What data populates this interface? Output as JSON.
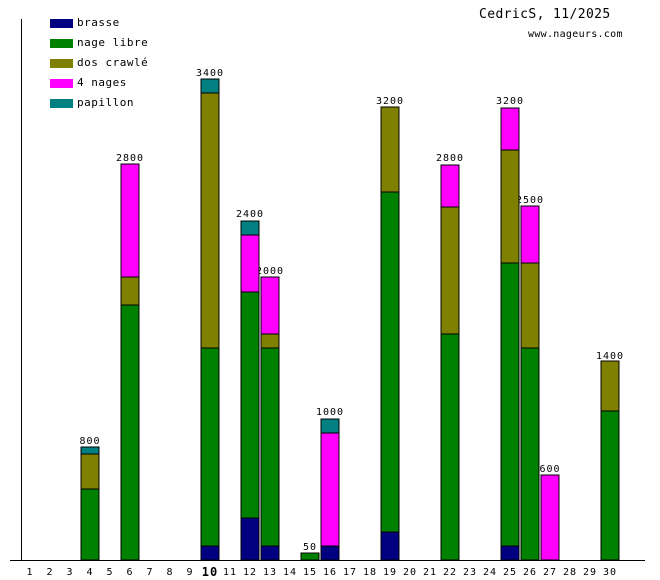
{
  "header": {
    "title": "CedricS, 11/2025",
    "url": "www.nageurs.com"
  },
  "chart_data": {
    "type": "bar",
    "stacked": true,
    "title": "CedricS, 11/2025",
    "subtitle": "www.nageurs.com",
    "unit": "meters swum per day",
    "grid": false,
    "legend_position": "top-left",
    "ylim": [
      0,
      3450
    ],
    "x_labels": [
      "1",
      "2",
      "3",
      "4",
      "5",
      "6",
      "7",
      "8",
      "9",
      "10",
      "11",
      "12",
      "13",
      "14",
      "15",
      "16",
      "17",
      "18",
      "19",
      "20",
      "21",
      "22",
      "23",
      "24",
      "25",
      "26",
      "27",
      "28",
      "29",
      "30"
    ],
    "bold_x_label": "10",
    "legend": [
      {
        "label": "brasse",
        "color": "#000080"
      },
      {
        "label": "nage libre",
        "color": "#008000"
      },
      {
        "label": "dos crawlé",
        "color": "#808000"
      },
      {
        "label": "4 nages",
        "color": "#ff00ff"
      },
      {
        "label": "papillon",
        "color": "#008080"
      }
    ],
    "bars": [
      {
        "day": "4",
        "total": 800,
        "values": [
          0,
          500,
          250,
          0,
          50
        ]
      },
      {
        "day": "6",
        "total": 2800,
        "values": [
          0,
          1800,
          200,
          800,
          0
        ]
      },
      {
        "day": "10",
        "total": 3400,
        "values": [
          100,
          1400,
          1800,
          0,
          100
        ]
      },
      {
        "day": "12",
        "total": 2400,
        "values": [
          300,
          1600,
          0,
          400,
          100
        ]
      },
      {
        "day": "13",
        "total": 2000,
        "values": [
          100,
          1400,
          100,
          400,
          0
        ]
      },
      {
        "day": "15",
        "total": 50,
        "values": [
          0,
          50,
          0,
          0,
          0
        ]
      },
      {
        "day": "16",
        "total": 1000,
        "values": [
          100,
          0,
          0,
          800,
          100
        ]
      },
      {
        "day": "19",
        "total": 3200,
        "values": [
          200,
          2400,
          600,
          0,
          0
        ]
      },
      {
        "day": "22",
        "total": 2800,
        "values": [
          0,
          1600,
          900,
          300,
          0
        ]
      },
      {
        "day": "25",
        "total": 3200,
        "values": [
          100,
          2000,
          800,
          300,
          0
        ]
      },
      {
        "day": "26",
        "total": 2500,
        "values": [
          0,
          1500,
          600,
          400,
          0
        ]
      },
      {
        "day": "27",
        "total": 600,
        "values": [
          0,
          0,
          0,
          600,
          0
        ]
      },
      {
        "day": "30",
        "total": 1400,
        "values": [
          0,
          1050,
          350,
          0,
          0
        ]
      }
    ],
    "colors": {
      "axis": "#000000",
      "text": "#000000",
      "background": "#ffffff"
    }
  }
}
